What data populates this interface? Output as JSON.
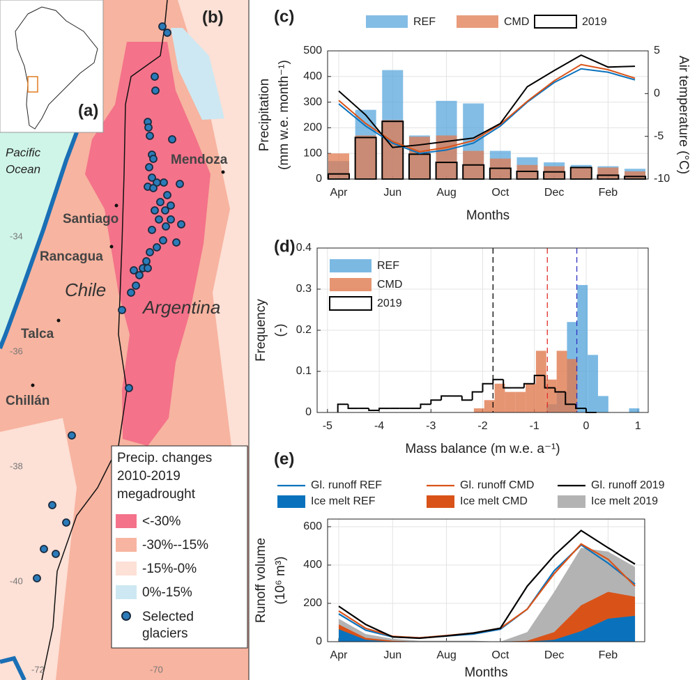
{
  "map": {
    "inset_label": "(a)",
    "panel": "(b)",
    "ocean": [
      "Pacific",
      "Ocean"
    ],
    "cities": [
      "Mendoza",
      "Santiago",
      "Rancagua",
      "Talca",
      "Chillán"
    ],
    "countries": [
      "Chile",
      "Argentina"
    ],
    "lat_labels": [
      "-34",
      "-36",
      "-38",
      "-40"
    ],
    "lon_labels": [
      "-72",
      "-70"
    ],
    "legend": {
      "title": [
        "Precip. changes",
        "2010-2019",
        "megadrought"
      ],
      "items": [
        "<-30%",
        "-30%--15%",
        "-15%-0%",
        "0%-15%"
      ],
      "glaciers": [
        "Selected",
        "glaciers"
      ]
    }
  },
  "chart_data": [
    {
      "panel": "(c)",
      "type": "combo",
      "categories": [
        "Apr",
        null,
        "Jun",
        null,
        "Aug",
        null,
        "Oct",
        null,
        "Dec",
        null,
        "Feb",
        null
      ],
      "xlabel": "Months",
      "ylabel": [
        "Precipitation",
        "(mm w.e. month⁻¹)"
      ],
      "y2label": "Air temperature (°C)",
      "ylim": [
        0,
        500
      ],
      "yticks": [
        0,
        100,
        200,
        300,
        400,
        500
      ],
      "y2lim": [
        -10,
        5
      ],
      "y2ticks": [
        -10,
        -5,
        0,
        5
      ],
      "grid": true,
      "legend": "top",
      "series": [
        {
          "name": "REF",
          "style": "filled",
          "color": "#5aa7dc",
          "values": [
            70,
            270,
            425,
            170,
            305,
            295,
            110,
            85,
            65,
            55,
            50,
            40
          ]
        },
        {
          "name": "CMD",
          "style": "filled",
          "color": "#e07b4f",
          "values": [
            100,
            170,
            230,
            165,
            170,
            110,
            80,
            55,
            50,
            45,
            45,
            30
          ]
        },
        {
          "name": "2019",
          "style": "outline",
          "color": "#000000",
          "values": [
            20,
            162,
            225,
            97,
            65,
            55,
            42,
            30,
            28,
            45,
            15,
            10
          ]
        },
        {
          "axis": "y2",
          "color": "#0a72bd",
          "values": [
            -1.2,
            -3.8,
            -5.8,
            -7.0,
            -6.6,
            -5.8,
            -3.8,
            -1.0,
            1.3,
            2.9,
            2.5,
            1.6
          ]
        },
        {
          "axis": "y2",
          "color": "#d95319",
          "values": [
            -0.8,
            -3.5,
            -5.6,
            -6.8,
            -6.3,
            -5.5,
            -3.6,
            -0.9,
            1.5,
            3.4,
            2.8,
            1.8
          ]
        },
        {
          "axis": "y2",
          "color": "#000000",
          "values": [
            0.3,
            -2.5,
            -6.3,
            -6.0,
            -5.6,
            -5.2,
            -3.5,
            0.8,
            2.7,
            4.5,
            3.1,
            3.2
          ]
        }
      ]
    },
    {
      "panel": "(d)",
      "type": "histogram",
      "xlabel": "Mass balance (m w.e. a⁻¹)",
      "ylabel": [
        "Frequency",
        "(-)"
      ],
      "xlim": [
        -5.2,
        1.2
      ],
      "xticks": [
        -5,
        -4,
        -3,
        -2,
        -1,
        0,
        1
      ],
      "ylim": [
        0,
        0.4
      ],
      "yticks": [
        0,
        0.1,
        0.2,
        0.3,
        0.4
      ],
      "grid": true,
      "legend": "top-left",
      "series": [
        {
          "name": "REF",
          "style": "filled",
          "color": "#5aa7dc",
          "bins": [
            -0.77,
            -0.57,
            -0.37,
            -0.17,
            0.03,
            0.23,
            0.43,
            0.63,
            0.83,
            1.03
          ],
          "values": [
            0.02,
            0.05,
            0.22,
            0.31,
            0.14,
            0.04,
            0,
            0,
            0.01
          ]
        },
        {
          "name": "CMD",
          "style": "filled",
          "color": "#e07b4f",
          "bins": [
            -2.17,
            -1.97,
            -1.77,
            -1.57,
            -1.37,
            -1.17,
            -0.97,
            -0.77,
            -0.57,
            -0.37,
            -0.17
          ],
          "values": [
            0.01,
            0.03,
            0.07,
            0.05,
            0.05,
            0.07,
            0.15,
            0.08,
            0.15,
            0.13
          ]
        },
        {
          "name": "2019",
          "style": "step",
          "color": "#000000",
          "bins": [
            -4.8,
            -4.6,
            -4.4,
            -4.2,
            -4.0,
            -3.8,
            -3.6,
            -3.4,
            -3.2,
            -3.0,
            -2.8,
            -2.6,
            -2.4,
            -2.2,
            -2.0,
            -1.8,
            -1.6,
            -1.4,
            -1.2,
            -1.0,
            -0.8,
            -0.6,
            -0.4,
            -0.2,
            0.0,
            0.2
          ],
          "values": [
            0.02,
            0.01,
            0.01,
            0.005,
            0.01,
            0.01,
            0.01,
            0.01,
            0.02,
            0.03,
            0.04,
            0.04,
            0.03,
            0.05,
            0.07,
            0.08,
            0.06,
            0.06,
            0.07,
            0.09,
            0.06,
            0.05,
            0.02,
            0.01,
            0.0
          ]
        }
      ],
      "vlines": [
        {
          "value": -1.8,
          "color": "#000000"
        },
        {
          "value": -0.75,
          "color": "#e0302a"
        },
        {
          "value": -0.18,
          "color": "#3030c0"
        }
      ]
    },
    {
      "panel": "(e)",
      "type": "area",
      "categories": [
        "Apr",
        null,
        "Jun",
        null,
        "Aug",
        null,
        "Oct",
        null,
        "Dec",
        null,
        "Feb",
        null
      ],
      "xlabel": "Months",
      "ylabel": [
        "Runoff volume",
        "(10⁶ m³)"
      ],
      "ylim": [
        0,
        640
      ],
      "yticks": [
        0,
        200,
        400,
        600
      ],
      "grid": true,
      "legend": "top",
      "series": [
        {
          "name": "Gl. runoff REF",
          "style": "line",
          "color": "#0a72bd",
          "values": [
            145,
            60,
            25,
            20,
            30,
            40,
            65,
            170,
            370,
            505,
            410,
            300
          ]
        },
        {
          "name": "Gl. runoff  CMD",
          "style": "line",
          "color": "#d95319",
          "values": [
            160,
            70,
            28,
            20,
            32,
            45,
            70,
            170,
            355,
            510,
            430,
            290
          ]
        },
        {
          "name": "Gl. runoff  2019",
          "style": "line",
          "color": "#000000",
          "values": [
            185,
            90,
            25,
            18,
            30,
            45,
            70,
            290,
            450,
            580,
            490,
            405
          ]
        },
        {
          "name": "Ice melt REF",
          "style": "area",
          "color": "#0a72bd",
          "values": [
            65,
            10,
            0,
            0,
            0,
            0,
            0,
            0,
            10,
            55,
            120,
            135
          ]
        },
        {
          "name": "Ice melt CMD",
          "style": "area",
          "color": "#d95319",
          "values": [
            90,
            20,
            5,
            0,
            0,
            0,
            0,
            5,
            50,
            190,
            260,
            235
          ]
        },
        {
          "name": "Ice melt 2019",
          "style": "area",
          "color": "#b3b3b3",
          "values": [
            120,
            40,
            15,
            5,
            5,
            5,
            0,
            50,
            260,
            490,
            470,
            390
          ]
        }
      ]
    }
  ]
}
